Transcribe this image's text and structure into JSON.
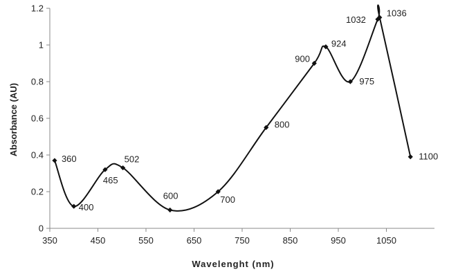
{
  "chart_data": {
    "type": "line",
    "title": "",
    "xlabel": "Wavelenght (nm)",
    "ylabel": "Absorbance (AU)",
    "xlim": [
      350,
      1150
    ],
    "ylim": [
      0,
      1.2
    ],
    "x_ticks": [
      350,
      450,
      550,
      650,
      750,
      850,
      950,
      1050
    ],
    "x_tick_labels": [
      "350",
      "450",
      "550",
      "650",
      "750",
      "850",
      "950",
      "1050"
    ],
    "y_ticks": [
      0,
      0.2,
      0.4,
      0.6,
      0.8,
      1,
      1.2
    ],
    "y_tick_labels": [
      "0",
      "0.2",
      "0.4",
      "0.6",
      "0.8",
      "1",
      "1.2"
    ],
    "grid": false,
    "marker": "diamond",
    "line_color": "#111111",
    "series": [
      {
        "x": [
          360,
          400,
          465,
          502,
          600,
          700,
          800,
          900,
          924,
          975,
          1032,
          1036,
          1100
        ],
        "y": [
          0.37,
          0.12,
          0.32,
          0.33,
          0.1,
          0.2,
          0.55,
          0.9,
          0.99,
          0.8,
          1.14,
          1.15,
          0.39
        ],
        "point_labels": [
          "360",
          "400",
          "465",
          "502",
          "600",
          "700",
          "800",
          "900",
          "924",
          "975",
          "1032",
          "1036",
          "1100"
        ]
      }
    ]
  }
}
